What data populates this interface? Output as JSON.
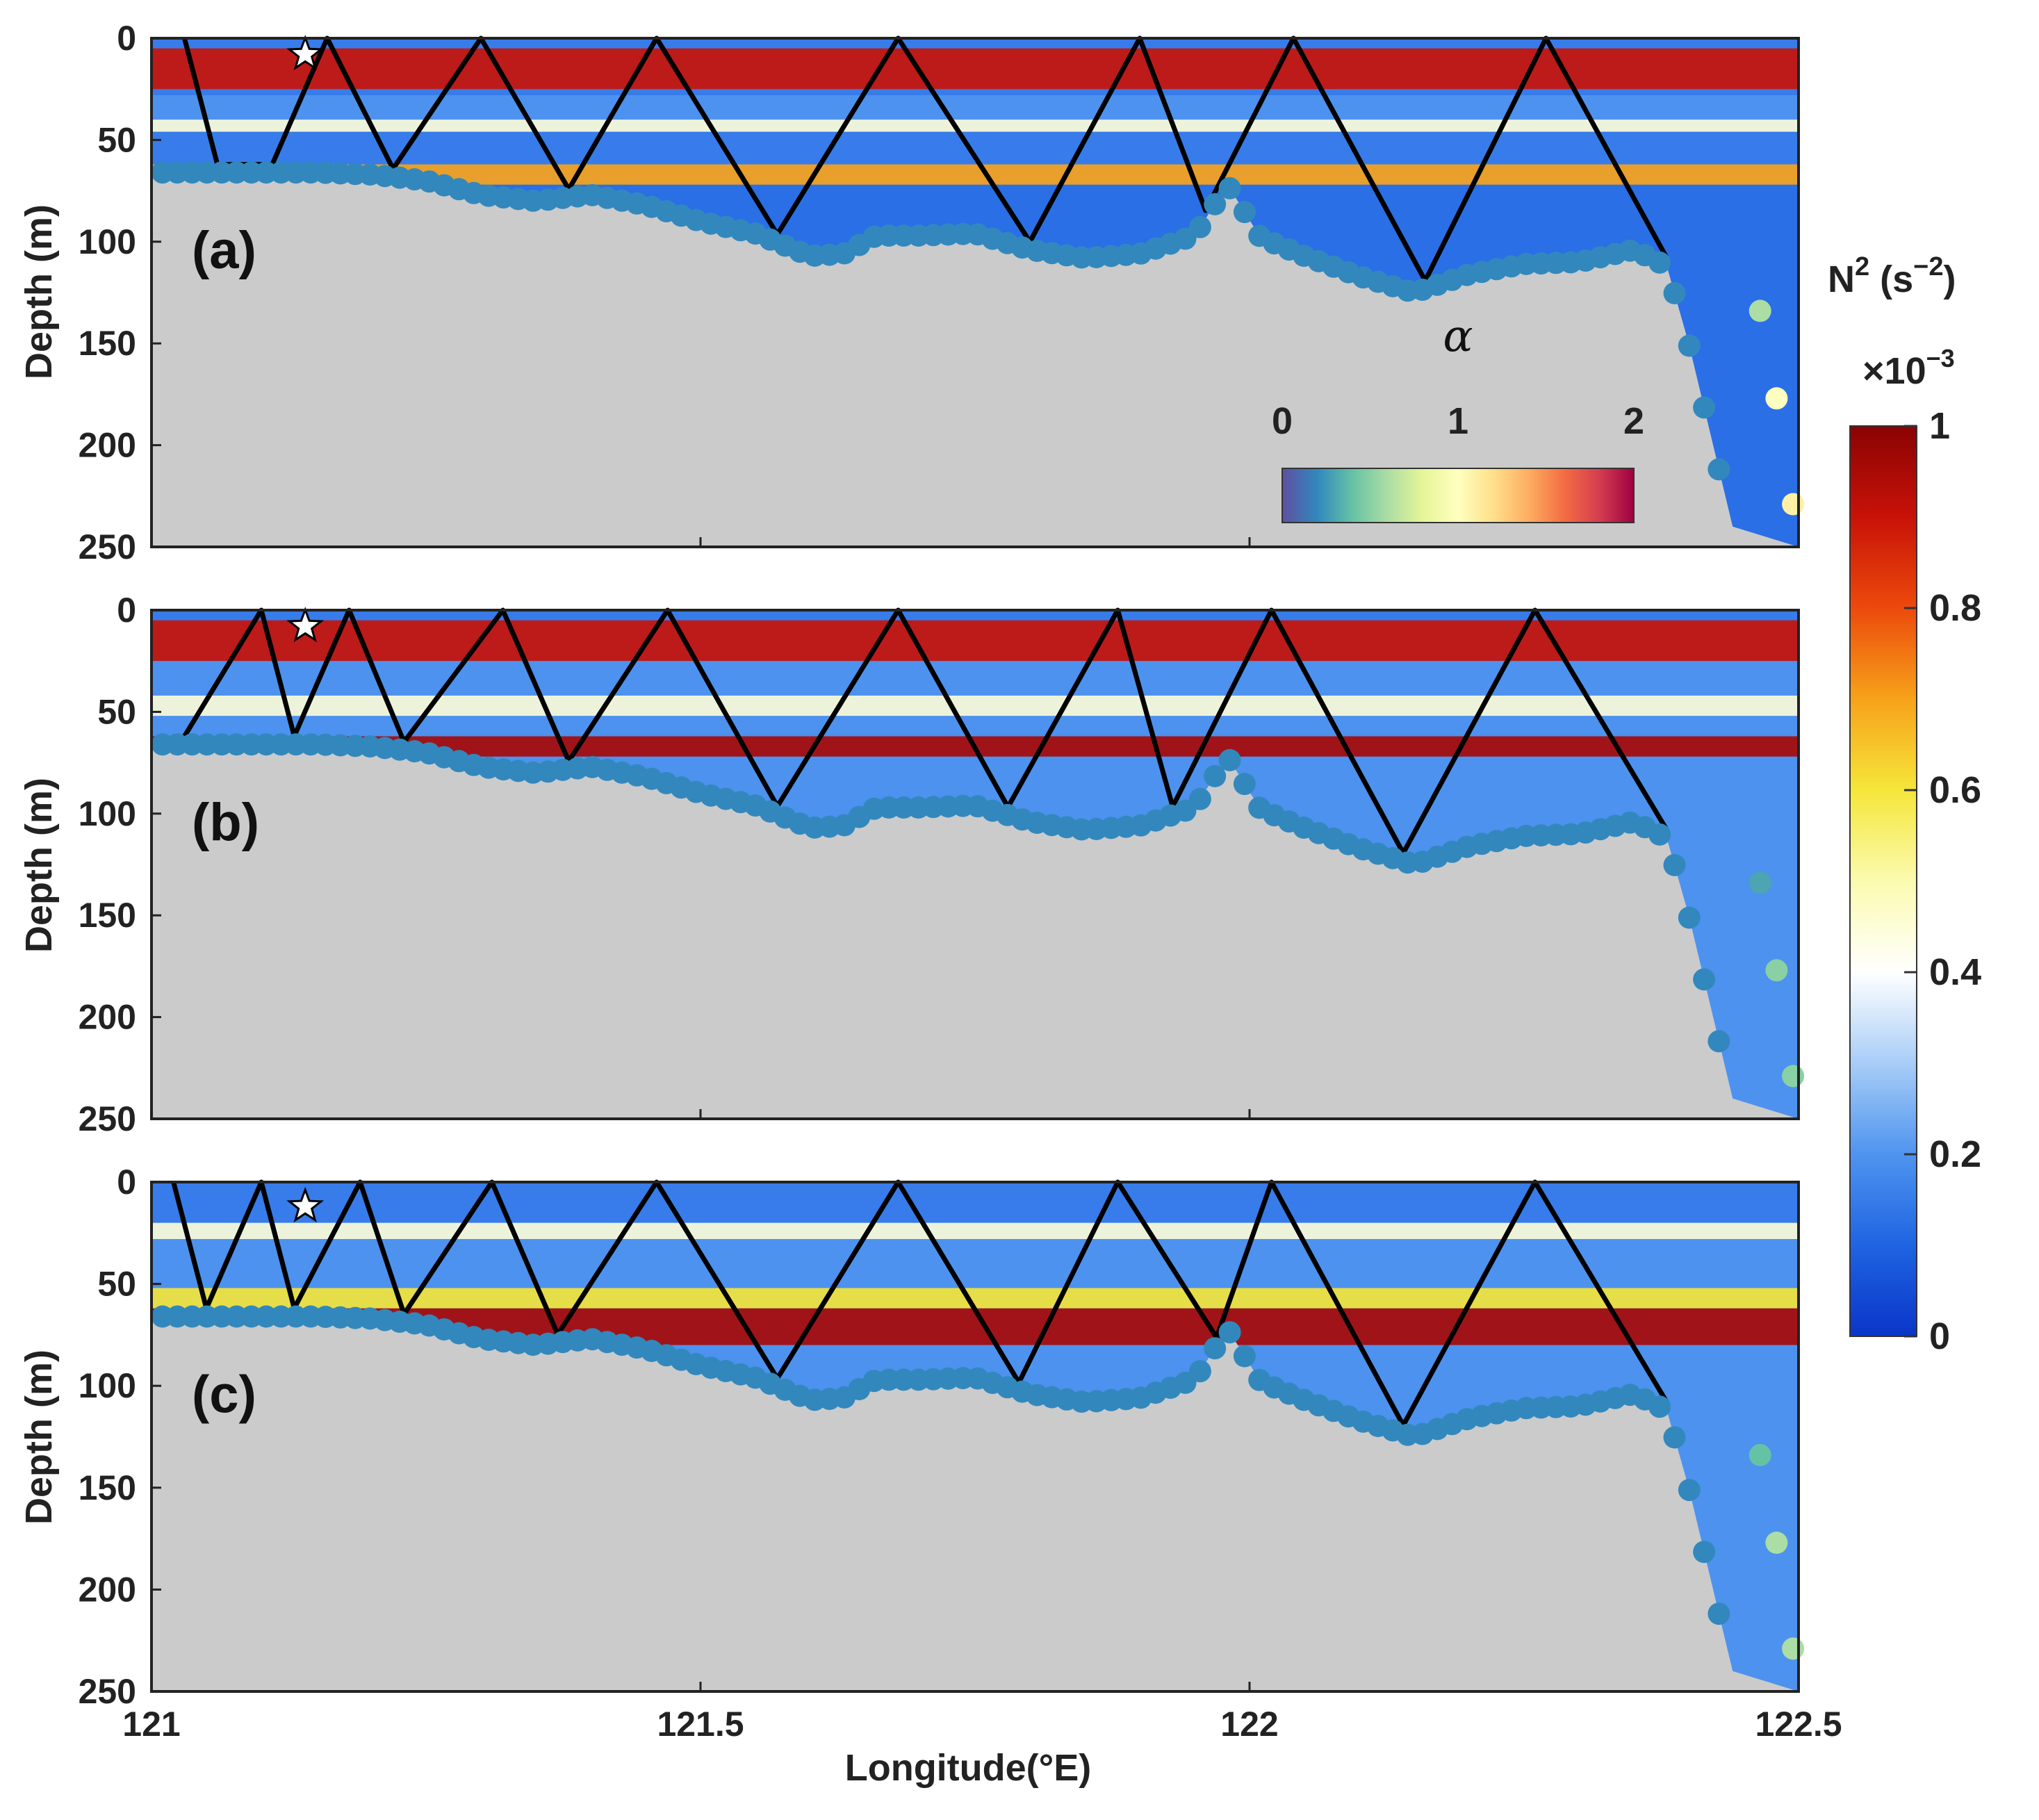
{
  "chart_data": {
    "type": "heatmap",
    "description_units": {
      "x": "Longitude (°E)",
      "y": "Depth (m)",
      "color": "N^2 (s^-2) x10^-3"
    },
    "xlabel": "Longitude(°E)",
    "ylabel": "Depth (m)",
    "xlim": [
      121.0,
      122.5
    ],
    "ylim": [
      0,
      250
    ],
    "xticks": [
      "121",
      "121.5",
      "122",
      "122.5"
    ],
    "xtick_values": [
      121.0,
      121.5,
      122.0,
      122.5
    ],
    "yticks": [
      "0",
      "50",
      "100",
      "150",
      "200",
      "250"
    ],
    "ytick_values": [
      0,
      50,
      100,
      150,
      200,
      250
    ],
    "colorbar": {
      "title": "N",
      "title_sup": "2",
      "title_units": "(s",
      "title_units_sup": "−2",
      "title_close": ")",
      "multiplier": "×10",
      "multiplier_sup": "−3",
      "ticks": [
        "0",
        "0.2",
        "0.4",
        "0.6",
        "0.8",
        "1"
      ],
      "tick_values": [
        0,
        0.2,
        0.4,
        0.6,
        0.8,
        1.0
      ],
      "colors": [
        "#0a35c8",
        "#1f64e2",
        "#4f94ef",
        "#a8cdf7",
        "#ffffff",
        "#fbfbb0",
        "#f5e63a",
        "#f7a21a",
        "#ec4a0c",
        "#c81208",
        "#8a0303"
      ]
    },
    "alpha_legend": {
      "label": "α",
      "ticks": [
        "0",
        "1",
        "2"
      ],
      "tick_values": [
        0,
        1,
        2
      ],
      "colors": [
        "#5e4fa2",
        "#3288bd",
        "#66c2a5",
        "#abdda4",
        "#e6f598",
        "#ffffbf",
        "#fee08b",
        "#fdae61",
        "#f46d43",
        "#d53e4f",
        "#9e0142"
      ]
    },
    "bathymetry": {
      "lon": [
        121.0,
        121.05,
        121.1,
        121.15,
        121.2,
        121.25,
        121.3,
        121.35,
        121.4,
        121.45,
        121.5,
        121.55,
        121.6,
        121.63,
        121.66,
        121.7,
        121.75,
        121.8,
        121.85,
        121.9,
        121.95,
        121.98,
        122.01,
        122.05,
        122.1,
        122.15,
        122.2,
        122.25,
        122.3,
        122.35,
        122.38,
        122.4,
        122.42,
        122.44,
        122.5
      ],
      "depth": [
        66,
        66,
        66,
        66,
        67,
        70,
        77,
        80,
        77,
        82,
        90,
        96,
        107,
        106,
        97,
        97,
        96,
        104,
        108,
        106,
        97,
        72,
        98,
        107,
        117,
        125,
        116,
        111,
        110,
        104,
        112,
        150,
        195,
        240,
        250
      ]
    },
    "panels": [
      {
        "label": "(a)",
        "star": {
          "lon": 121.14,
          "depth": 8
        },
        "alpha_shelf": [
          0.2,
          0.2,
          0.2,
          0.2,
          0.2
        ],
        "alpha_slope": [
          0.6,
          1.0,
          1.1
        ],
        "ray_bottom_lon": [
          121.06,
          121.11,
          121.22,
          121.38,
          121.57,
          121.8,
          121.96,
          122.16,
          122.38
        ],
        "ray_surface_lon": [
          121.03,
          121.16,
          121.3,
          121.46,
          121.68,
          121.9,
          122.04,
          122.27
        ]
      },
      {
        "label": "(b)",
        "star": {
          "lon": 121.14,
          "depth": 8
        },
        "alpha_shelf": [
          0.2,
          0.2,
          0.2,
          0.2,
          0.2
        ],
        "alpha_slope": [
          0.3,
          0.5,
          0.5
        ],
        "ray_bottom_lon": [
          121.03,
          121.13,
          121.23,
          121.38,
          121.57,
          121.78,
          121.93,
          122.14,
          122.38
        ],
        "ray_surface_lon": [
          121.1,
          121.18,
          121.32,
          121.47,
          121.68,
          121.88,
          122.02,
          122.26
        ]
      },
      {
        "label": "(c)",
        "star": {
          "lon": 121.14,
          "depth": 12
        },
        "alpha_shelf": [
          0.2,
          0.2,
          0.2,
          0.2,
          0.2
        ],
        "alpha_slope": [
          0.4,
          0.6,
          0.6
        ],
        "ray_bottom_lon": [
          121.05,
          121.13,
          121.23,
          121.37,
          121.57,
          121.79,
          121.97,
          122.14,
          122.38
        ],
        "ray_surface_lon": [
          121.02,
          121.1,
          121.19,
          121.31,
          121.46,
          121.68,
          121.88,
          122.02,
          122.26
        ]
      }
    ],
    "n2_bands": [
      {
        "panel": "(a)",
        "layers": [
          {
            "depth": [
              5,
              25
            ],
            "value": 0.9
          },
          {
            "depth": [
              28,
              40
            ],
            "value": 0.2
          },
          {
            "depth": [
              40,
              46
            ],
            "value": 0.45
          },
          {
            "depth": [
              46,
              62
            ],
            "value": 0.15
          },
          {
            "depth": [
              62,
              72
            ],
            "value": 0.7
          },
          {
            "depth": [
              72,
              250
            ],
            "value": 0.12
          }
        ]
      },
      {
        "panel": "(b)",
        "layers": [
          {
            "depth": [
              5,
              25
            ],
            "value": 0.9
          },
          {
            "depth": [
              25,
              42
            ],
            "value": 0.2
          },
          {
            "depth": [
              42,
              52
            ],
            "value": 0.45
          },
          {
            "depth": [
              52,
              62
            ],
            "value": 0.2
          },
          {
            "depth": [
              62,
              72
            ],
            "value": 0.95
          },
          {
            "depth": [
              72,
              250
            ],
            "value": 0.2
          }
        ]
      },
      {
        "panel": "(c)",
        "layers": [
          {
            "depth": [
              5,
              20
            ],
            "value": 0.15
          },
          {
            "depth": [
              20,
              28
            ],
            "value": 0.45
          },
          {
            "depth": [
              28,
              52
            ],
            "value": 0.2
          },
          {
            "depth": [
              52,
              62
            ],
            "value": 0.6
          },
          {
            "depth": [
              62,
              80
            ],
            "value": 0.95
          },
          {
            "depth": [
              80,
              250
            ],
            "value": 0.2
          }
        ]
      }
    ]
  }
}
